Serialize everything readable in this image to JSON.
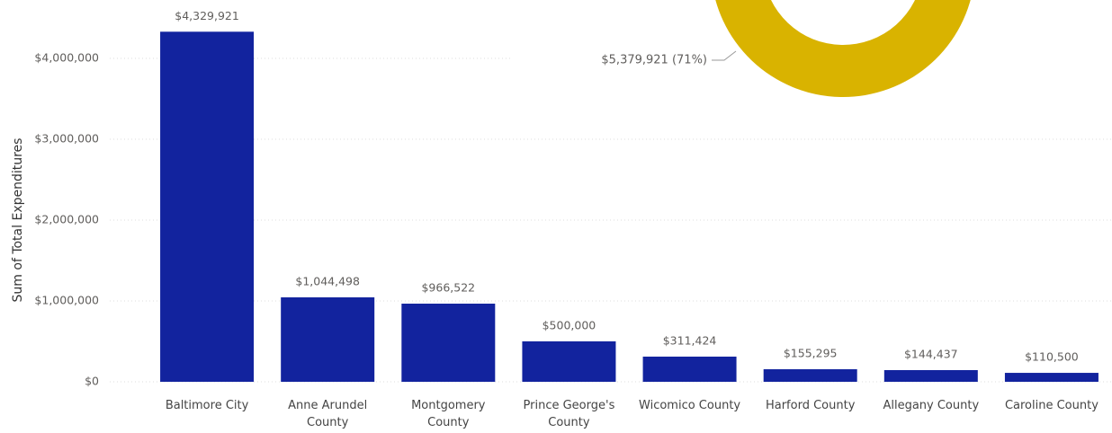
{
  "chart_data": [
    {
      "type": "bar",
      "y_label": "Sum of Total Expenditures",
      "categories": [
        "Baltimore City",
        "Anne Arundel County",
        "Montgomery County",
        "Prince George's County",
        "Wicomico County",
        "Harford County",
        "Allegany County",
        "Caroline County"
      ],
      "values": [
        4329921,
        1044498,
        966522,
        500000,
        311424,
        155295,
        144437,
        110500
      ],
      "value_labels": [
        "$4,329,921",
        "$1,044,498",
        "$966,522",
        "$500,000",
        "$311,424",
        "$155,295",
        "$144,437",
        "$110,500"
      ],
      "color": "#12239E",
      "ylim": [
        0,
        4400000
      ],
      "yticks": [
        {
          "value": 0,
          "label": "$0"
        },
        {
          "value": 1000000,
          "label": "$1,000,000"
        },
        {
          "value": 2000000,
          "label": "$2,000,000"
        },
        {
          "value": 3000000,
          "label": "$3,000,000"
        },
        {
          "value": 4000000,
          "label": "$4,000,000"
        }
      ],
      "grid": true
    },
    {
      "type": "donut",
      "values": [
        5379921
      ],
      "value_labels": [
        "$5,379,921 (71%)"
      ],
      "percent": [
        71
      ],
      "color": "#D9B300"
    }
  ]
}
